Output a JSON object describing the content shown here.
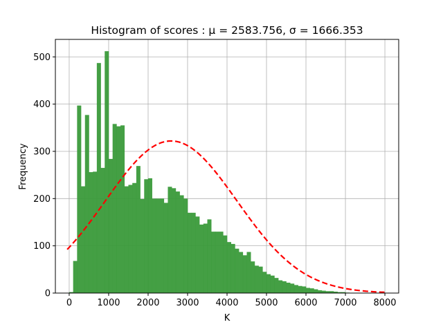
{
  "chart_data": {
    "type": "bar",
    "title": "Histogram of scores : μ = 2583.756,  σ = 1666.353",
    "xlabel": "K",
    "ylabel": "Frequency",
    "xlim": [
      -350,
      8350
    ],
    "ylim": [
      0,
      537
    ],
    "grid": true,
    "bar_color": "#3a9a3a",
    "fit_color": "#ff0000",
    "x_ticks": [
      0,
      1000,
      2000,
      3000,
      4000,
      5000,
      6000,
      7000,
      8000
    ],
    "y_ticks": [
      0,
      100,
      200,
      300,
      400,
      500
    ],
    "bin_start": 0,
    "bin_width": 100,
    "values": [
      2,
      68,
      397,
      226,
      377,
      256,
      257,
      487,
      265,
      512,
      284,
      358,
      353,
      355,
      226,
      229,
      233,
      269,
      199,
      241,
      243,
      200,
      200,
      200,
      191,
      225,
      222,
      215,
      207,
      200,
      170,
      170,
      162,
      145,
      147,
      156,
      130,
      130,
      130,
      122,
      108,
      104,
      94,
      87,
      80,
      87,
      67,
      58,
      56,
      45,
      40,
      37,
      32,
      27,
      25,
      22,
      20,
      17,
      15,
      14,
      11,
      10,
      8,
      6,
      5,
      4,
      4,
      3,
      2,
      2,
      1
    ],
    "fit": {
      "type": "normal",
      "mu": 2583.756,
      "sigma": 1666.353,
      "peak": 322,
      "x_range": [
        -50,
        8000
      ],
      "style": "dashed"
    }
  }
}
